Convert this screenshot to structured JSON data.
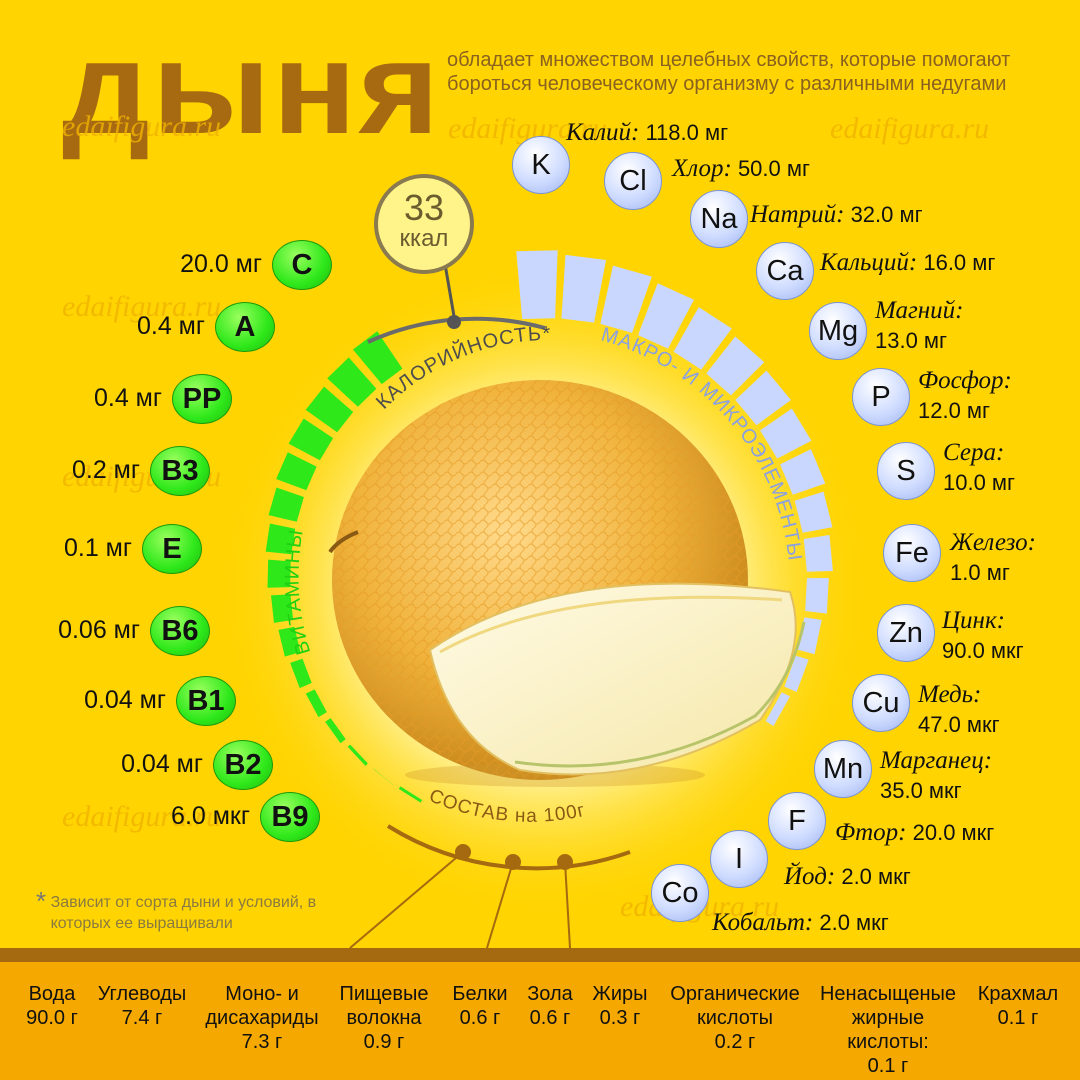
{
  "title": "дыня",
  "subtitle": "обладает множеством целебных свойств, которые помогают бороться человеческому организму с различными недугами",
  "watermark": "edaifigura.ru",
  "calories": {
    "value": "33",
    "unit": "ккал",
    "label": "КАЛОРИЙНОСТЬ*"
  },
  "arc_labels": {
    "vitamins": "ВИТАМИНЫ",
    "minerals": "МАКРО- И МИКРОЭЛЕМЕНТЫ",
    "composition": "СОСТАВ на 100г"
  },
  "vitamins": [
    {
      "symbol": "C",
      "value": "20.0 мг"
    },
    {
      "symbol": "A",
      "value": "0.4 мг"
    },
    {
      "symbol": "PP",
      "value": "0.4 мг"
    },
    {
      "symbol": "B3",
      "value": "0.2 мг"
    },
    {
      "symbol": "E",
      "value": "0.1 мг"
    },
    {
      "symbol": "B6",
      "value": "0.06 мг"
    },
    {
      "symbol": "B1",
      "value": "0.04 мг"
    },
    {
      "symbol": "B2",
      "value": "0.04 мг"
    },
    {
      "symbol": "B9",
      "value": "6.0 мкг"
    }
  ],
  "minerals": [
    {
      "symbol": "K",
      "name": "Калий:",
      "value": "118.0 мг"
    },
    {
      "symbol": "Cl",
      "name": "Хлор:",
      "value": "50.0 мг"
    },
    {
      "symbol": "Na",
      "name": "Натрий:",
      "value": "32.0 мг"
    },
    {
      "symbol": "Ca",
      "name": "Кальций:",
      "value": "16.0 мг"
    },
    {
      "symbol": "Mg",
      "name": "Магний:",
      "value": "13.0 мг"
    },
    {
      "symbol": "P",
      "name": "Фосфор:",
      "value": "12.0 мг"
    },
    {
      "symbol": "S",
      "name": "Сера:",
      "value": "10.0 мг"
    },
    {
      "symbol": "Fe",
      "name": "Железо:",
      "value": "1.0 мг"
    },
    {
      "symbol": "Zn",
      "name": "Цинк:",
      "value": "90.0 мкг"
    },
    {
      "symbol": "Cu",
      "name": "Медь:",
      "value": "47.0 мкг"
    },
    {
      "symbol": "Mn",
      "name": "Марганец:",
      "value": "35.0 мкг"
    },
    {
      "symbol": "F",
      "name": "Фтор:",
      "value": "20.0 мкг"
    },
    {
      "symbol": "I",
      "name": "Йод:",
      "value": "2.0 мкг"
    },
    {
      "symbol": "Co",
      "name": "Кобальт:",
      "value": "2.0 мкг"
    }
  ],
  "footnote": "Зависит от сорта дыни и условий, в которых ее выращивали",
  "composition": [
    {
      "name": "Вода",
      "value": "90.0 г"
    },
    {
      "name": "Углеводы",
      "value": "7.4 г"
    },
    {
      "name": "Моно- и дисахариды",
      "value": "7.3 г"
    },
    {
      "name": "Пищевые волокна",
      "value": "0.9 г"
    },
    {
      "name": "Белки",
      "value": "0.6 г"
    },
    {
      "name": "Зола",
      "value": "0.6 г"
    },
    {
      "name": "Жиры",
      "value": "0.3 г"
    },
    {
      "name": "Органические кислоты",
      "value": "0.2 г"
    },
    {
      "name": "Ненасыщеные жирные кислоты:",
      "value": "0.1 г"
    },
    {
      "name": "Крахмал",
      "value": "0.1 г"
    }
  ],
  "colors": {
    "background": "#ffd400",
    "title": "#a86a10",
    "vitamin": "#2ee81a",
    "mineral": "#c9d7ff",
    "bottom_band": "#f4a800"
  }
}
